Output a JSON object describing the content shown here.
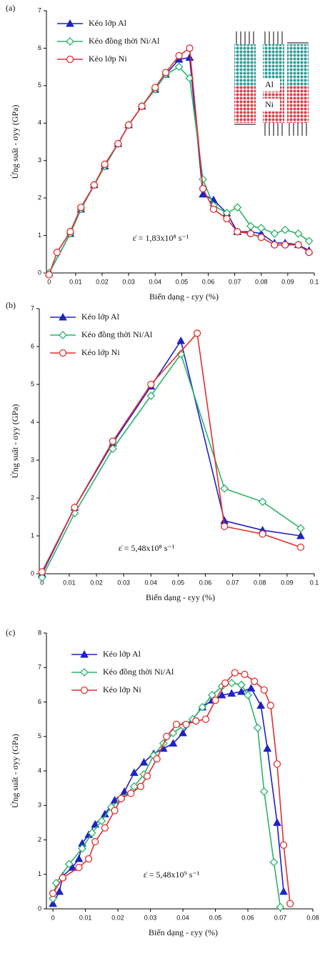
{
  "chart_data": [
    {
      "type": "line",
      "panel_label": "(a)",
      "x_label": "Biến dạng - εyy (%)",
      "y_label": "Ứng suất - σyy (GPa)",
      "annotation": "ε̇ = 1,83x10⁸ s⁻¹",
      "inset_labels": [
        "Al",
        "Ni"
      ],
      "xlim": [
        -0.001,
        0.1
      ],
      "ylim": [
        0,
        7
      ],
      "xticks": [
        0,
        0.01,
        0.02,
        0.03,
        0.04,
        0.05,
        0.06,
        0.07,
        0.08,
        0.09,
        0.1
      ],
      "yticks": [
        0,
        1,
        2,
        3,
        4,
        5,
        6,
        7
      ],
      "series": [
        {
          "name": "Kéo lớp Al",
          "color": "#1f22c4",
          "marker": "triangle",
          "x": [
            0,
            0.008,
            0.012,
            0.017,
            0.021,
            0.026,
            0.03,
            0.035,
            0.04,
            0.044,
            0.049,
            0.053,
            0.058,
            0.062,
            0.067,
            0.071,
            0.076,
            0.08,
            0.085,
            0.089,
            0.094,
            0.098
          ],
          "values": [
            0,
            1.05,
            1.7,
            2.35,
            2.85,
            3.45,
            3.95,
            4.45,
            4.9,
            5.3,
            5.7,
            5.75,
            2.1,
            1.95,
            1.6,
            1.1,
            1.1,
            1.05,
            0.8,
            0.8,
            0.75,
            0.6
          ]
        },
        {
          "name": "Kéo đồng thời Ni/Al",
          "color": "#2db36b",
          "marker": "diamond",
          "x": [
            0,
            0.008,
            0.012,
            0.017,
            0.021,
            0.026,
            0.03,
            0.035,
            0.04,
            0.044,
            0.049,
            0.053,
            0.058,
            0.062,
            0.067,
            0.071,
            0.076,
            0.08,
            0.085,
            0.089,
            0.094,
            0.098
          ],
          "values": [
            0,
            1.05,
            1.7,
            2.35,
            2.85,
            3.45,
            3.95,
            4.45,
            4.9,
            5.3,
            5.5,
            5.2,
            2.5,
            1.8,
            1.6,
            1.75,
            1.25,
            1.2,
            1.05,
            1.15,
            1.05,
            0.85
          ]
        },
        {
          "name": "Kéo lớp Ni",
          "color": "#e03030",
          "marker": "circle",
          "x": [
            0,
            0.003,
            0.008,
            0.012,
            0.017,
            0.021,
            0.026,
            0.03,
            0.035,
            0.04,
            0.044,
            0.049,
            0.053,
            0.058,
            0.062,
            0.067,
            0.071,
            0.076,
            0.08,
            0.085,
            0.089,
            0.094,
            0.098
          ],
          "values": [
            -0.05,
            0.55,
            1.1,
            1.75,
            2.35,
            2.9,
            3.45,
            3.95,
            4.45,
            4.95,
            5.35,
            5.8,
            6.0,
            2.25,
            1.7,
            1.45,
            1.1,
            1.05,
            0.95,
            0.75,
            0.75,
            0.75,
            0.55
          ]
        }
      ]
    },
    {
      "type": "line",
      "panel_label": "(b)",
      "x_label": "Biến dạng - εyy (%)",
      "y_label": "Ứng suất - σyy (GPa)",
      "annotation": "ε̇ = 5,48x10⁸ s⁻¹",
      "xlim": [
        -0.001,
        0.1
      ],
      "ylim": [
        0,
        7
      ],
      "xticks": [
        0,
        0.01,
        0.02,
        0.03,
        0.04,
        0.05,
        0.06,
        0.07,
        0.08,
        0.09,
        0.1
      ],
      "yticks": [
        0,
        1,
        2,
        3,
        4,
        5,
        6,
        7
      ],
      "series": [
        {
          "name": "Kéo lớp Al",
          "color": "#1f22c4",
          "marker": "triangle",
          "x": [
            0,
            0.012,
            0.026,
            0.04,
            0.051,
            0.067,
            0.081,
            0.095
          ],
          "values": [
            0,
            1.75,
            3.45,
            4.95,
            6.15,
            1.4,
            1.15,
            1.0
          ]
        },
        {
          "name": "Kéo đồng thời Ni/Al",
          "color": "#2db36b",
          "marker": "diamond",
          "x": [
            0,
            0.012,
            0.026,
            0.04,
            0.051,
            0.067,
            0.081,
            0.095
          ],
          "values": [
            -0.1,
            1.6,
            3.3,
            4.7,
            5.8,
            2.25,
            1.9,
            1.2
          ]
        },
        {
          "name": "Kéo lớp Ni",
          "color": "#e03030",
          "marker": "circle",
          "x": [
            0,
            0.012,
            0.026,
            0.04,
            0.057,
            0.067,
            0.081,
            0.095
          ],
          "values": [
            0.05,
            1.75,
            3.5,
            5.0,
            6.35,
            1.25,
            1.05,
            0.7
          ]
        }
      ]
    },
    {
      "type": "line",
      "panel_label": "(c)",
      "x_label": "Biến dạng - εyy (%)",
      "y_label": "Ứng suất - σyy (GPa)",
      "annotation": "ε̇ = 5,48x10⁹ s⁻¹",
      "xlim": [
        -0.002,
        0.08
      ],
      "ylim": [
        0,
        8
      ],
      "xticks": [
        0,
        0.01,
        0.02,
        0.03,
        0.04,
        0.05,
        0.06,
        0.07,
        0.08
      ],
      "yticks": [
        0,
        1,
        2,
        3,
        4,
        5,
        6,
        7,
        8
      ],
      "series": [
        {
          "name": "Kéo lớp Al",
          "color": "#1f22c4",
          "marker": "triangle",
          "x": [
            0,
            0.002,
            0.003,
            0.006,
            0.008,
            0.009,
            0.011,
            0.013,
            0.016,
            0.019,
            0.022,
            0.025,
            0.028,
            0.031,
            0.034,
            0.037,
            0.04,
            0.043,
            0.046,
            0.049,
            0.052,
            0.055,
            0.058,
            0.061,
            0.064,
            0.066,
            0.069,
            0.071
          ],
          "values": [
            0.15,
            0.5,
            0.95,
            1.2,
            1.45,
            1.9,
            2.15,
            2.45,
            2.75,
            3.15,
            3.4,
            3.95,
            4.25,
            4.5,
            4.65,
            4.8,
            5.1,
            5.5,
            5.85,
            6.05,
            6.2,
            6.25,
            6.3,
            6.4,
            5.9,
            4.65,
            2.5,
            0.5
          ]
        },
        {
          "name": "Kéo đồng thời Ni/Al",
          "color": "#2db36b",
          "marker": "diamond",
          "x": [
            0,
            0.001,
            0.005,
            0.009,
            0.012,
            0.015,
            0.018,
            0.021,
            0.025,
            0.028,
            0.031,
            0.034,
            0.037,
            0.04,
            0.043,
            0.046,
            0.049,
            0.052,
            0.055,
            0.058,
            0.06,
            0.063,
            0.065,
            0.068,
            0.07
          ],
          "values": [
            0.3,
            0.75,
            1.3,
            1.75,
            2.2,
            2.55,
            2.95,
            3.2,
            3.55,
            3.9,
            4.45,
            4.8,
            5.1,
            5.3,
            5.5,
            5.85,
            6.2,
            6.45,
            6.55,
            6.5,
            6.2,
            5.25,
            3.4,
            1.35,
            0.05
          ]
        },
        {
          "name": "Kéo lớp Ni",
          "color": "#e03030",
          "marker": "circle",
          "x": [
            0,
            0.003,
            0.008,
            0.011,
            0.013,
            0.016,
            0.019,
            0.021,
            0.024,
            0.027,
            0.029,
            0.032,
            0.035,
            0.038,
            0.041,
            0.044,
            0.047,
            0.05,
            0.053,
            0.056,
            0.059,
            0.062,
            0.065,
            0.067,
            0.069,
            0.071,
            0.073
          ],
          "values": [
            0.45,
            0.9,
            1.2,
            1.45,
            1.95,
            2.35,
            2.85,
            3.2,
            3.35,
            3.55,
            3.85,
            4.35,
            5.0,
            5.35,
            5.35,
            5.45,
            5.5,
            6.05,
            6.55,
            6.85,
            6.8,
            6.6,
            6.35,
            5.9,
            4.2,
            1.85,
            0.15
          ]
        }
      ]
    }
  ]
}
